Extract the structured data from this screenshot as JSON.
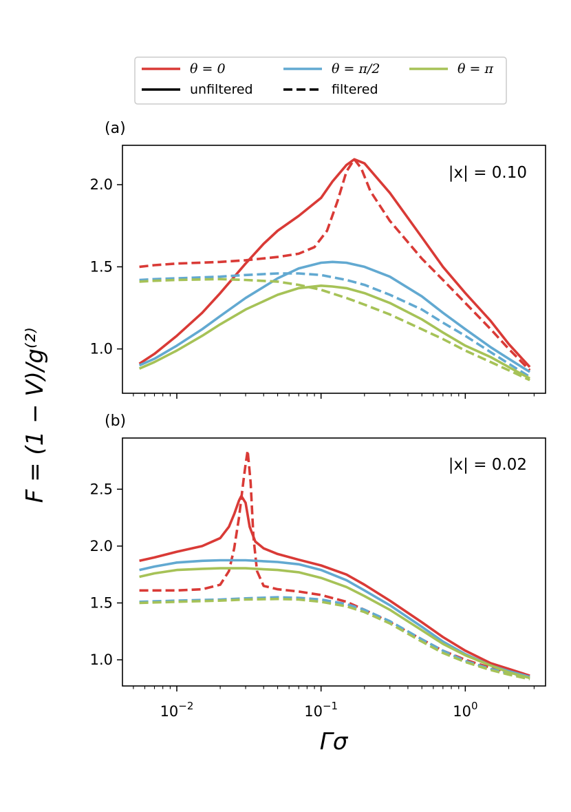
{
  "chart_data": {
    "type": "line",
    "xscale": "log",
    "xlabel": "Γσ",
    "ylabel": "F = (1 − V)/g⁽²⁾",
    "xlim": [
      0.0042,
      3.6
    ],
    "xticks": [
      {
        "value": 0.01,
        "base": "10",
        "exp": "−2"
      },
      {
        "value": 0.1,
        "base": "10",
        "exp": "−1"
      },
      {
        "value": 1,
        "base": "10",
        "exp": "0"
      }
    ],
    "legend": {
      "position": "top-center",
      "entries": [
        {
          "label": "θ = 0",
          "color": "#d93a36",
          "style": "solid"
        },
        {
          "label": "θ = π/2",
          "color": "#62a9d1",
          "style": "solid"
        },
        {
          "label": "θ = π",
          "color": "#a6c257",
          "style": "solid"
        },
        {
          "label": "unfiltered",
          "color": "#000000",
          "style": "solid"
        },
        {
          "label": "filtered",
          "color": "#000000",
          "style": "dashed"
        }
      ]
    },
    "panels": [
      {
        "label": "(a)",
        "annotation": "|x| = 0.10",
        "ylim": [
          0.73,
          2.24
        ],
        "yticks": [
          "1.0",
          "1.5",
          "2.0"
        ],
        "series": [
          {
            "name": "θ=0 unfiltered",
            "color": "#d93a36",
            "dash": false,
            "x": [
              0.0055,
              0.007,
              0.01,
              0.015,
              0.02,
              0.03,
              0.04,
              0.05,
              0.07,
              0.1,
              0.12,
              0.15,
              0.17,
              0.2,
              0.3,
              0.5,
              0.7,
              1.0,
              1.5,
              2.0,
              2.8
            ],
            "y": [
              0.91,
              0.97,
              1.08,
              1.22,
              1.34,
              1.52,
              1.64,
              1.72,
              1.81,
              1.92,
              2.02,
              2.12,
              2.155,
              2.13,
              1.95,
              1.68,
              1.5,
              1.34,
              1.17,
              1.03,
              0.89
            ]
          },
          {
            "name": "θ=0 filtered",
            "color": "#d93a36",
            "dash": true,
            "x": [
              0.0055,
              0.007,
              0.01,
              0.02,
              0.03,
              0.05,
              0.07,
              0.09,
              0.11,
              0.13,
              0.15,
              0.17,
              0.19,
              0.22,
              0.3,
              0.5,
              0.7,
              1.0,
              1.5,
              2.0,
              2.8
            ],
            "y": [
              1.5,
              1.51,
              1.52,
              1.53,
              1.54,
              1.56,
              1.58,
              1.62,
              1.72,
              1.9,
              2.08,
              2.155,
              2.1,
              1.96,
              1.78,
              1.55,
              1.42,
              1.28,
              1.12,
              1.0,
              0.87
            ]
          },
          {
            "name": "θ=π/2 unfiltered",
            "color": "#62a9d1",
            "dash": false,
            "x": [
              0.0055,
              0.007,
              0.01,
              0.015,
              0.02,
              0.03,
              0.05,
              0.07,
              0.1,
              0.12,
              0.15,
              0.2,
              0.3,
              0.5,
              0.7,
              1.0,
              1.5,
              2.0,
              2.8
            ],
            "y": [
              0.9,
              0.94,
              1.02,
              1.12,
              1.2,
              1.31,
              1.43,
              1.49,
              1.525,
              1.53,
              1.525,
              1.5,
              1.44,
              1.32,
              1.22,
              1.12,
              1.01,
              0.94,
              0.86
            ]
          },
          {
            "name": "θ=π/2 filtered",
            "color": "#62a9d1",
            "dash": true,
            "x": [
              0.0055,
              0.007,
              0.01,
              0.02,
              0.03,
              0.05,
              0.07,
              0.1,
              0.15,
              0.2,
              0.3,
              0.5,
              0.7,
              1.0,
              1.5,
              2.0,
              2.8
            ],
            "y": [
              1.42,
              1.425,
              1.43,
              1.44,
              1.45,
              1.46,
              1.46,
              1.45,
              1.42,
              1.39,
              1.33,
              1.24,
              1.16,
              1.08,
              0.98,
              0.91,
              0.83
            ]
          },
          {
            "name": "θ=π unfiltered",
            "color": "#a6c257",
            "dash": false,
            "x": [
              0.0055,
              0.007,
              0.01,
              0.015,
              0.02,
              0.03,
              0.05,
              0.07,
              0.1,
              0.12,
              0.15,
              0.2,
              0.3,
              0.5,
              0.7,
              1.0,
              1.5,
              2.0,
              2.8
            ],
            "y": [
              0.88,
              0.92,
              0.99,
              1.08,
              1.15,
              1.24,
              1.33,
              1.37,
              1.385,
              1.38,
              1.37,
              1.34,
              1.28,
              1.18,
              1.1,
              1.02,
              0.95,
              0.89,
              0.82
            ]
          },
          {
            "name": "θ=π filtered",
            "color": "#a6c257",
            "dash": true,
            "x": [
              0.0055,
              0.007,
              0.01,
              0.02,
              0.03,
              0.05,
              0.07,
              0.1,
              0.15,
              0.2,
              0.3,
              0.5,
              0.7,
              1.0,
              1.5,
              2.0,
              2.8
            ],
            "y": [
              1.41,
              1.415,
              1.42,
              1.425,
              1.42,
              1.41,
              1.39,
              1.36,
              1.31,
              1.27,
              1.21,
              1.12,
              1.06,
              0.99,
              0.92,
              0.87,
              0.81
            ]
          }
        ]
      },
      {
        "label": "(b)",
        "annotation": "|x| = 0.02",
        "ylim": [
          0.77,
          2.95
        ],
        "yticks": [
          "1.0",
          "1.5",
          "2.0",
          "2.5"
        ],
        "series": [
          {
            "name": "θ=0 unfiltered",
            "color": "#d93a36",
            "dash": false,
            "x": [
              0.0055,
              0.007,
              0.01,
              0.015,
              0.02,
              0.023,
              0.025,
              0.027,
              0.028,
              0.03,
              0.032,
              0.035,
              0.04,
              0.05,
              0.07,
              0.1,
              0.15,
              0.2,
              0.3,
              0.5,
              0.7,
              1.0,
              1.5,
              2.0,
              2.8
            ],
            "y": [
              1.87,
              1.9,
              1.95,
              2.0,
              2.07,
              2.17,
              2.28,
              2.4,
              2.44,
              2.38,
              2.17,
              2.04,
              1.98,
              1.93,
              1.88,
              1.83,
              1.75,
              1.66,
              1.52,
              1.33,
              1.2,
              1.08,
              0.97,
              0.92,
              0.86
            ]
          },
          {
            "name": "θ=0 filtered",
            "color": "#d93a36",
            "dash": true,
            "x": [
              0.0055,
              0.01,
              0.015,
              0.02,
              0.023,
              0.025,
              0.027,
              0.029,
              0.03,
              0.031,
              0.0325,
              0.034,
              0.036,
              0.04,
              0.05,
              0.07,
              0.1,
              0.15,
              0.2,
              0.3,
              0.5,
              0.7,
              1.0,
              1.5,
              2.0,
              2.8
            ],
            "y": [
              1.61,
              1.61,
              1.62,
              1.66,
              1.78,
              1.98,
              2.25,
              2.58,
              2.72,
              2.84,
              2.56,
              2.08,
              1.78,
              1.65,
              1.62,
              1.6,
              1.57,
              1.51,
              1.44,
              1.33,
              1.18,
              1.08,
              1.0,
              0.93,
              0.89,
              0.85
            ]
          },
          {
            "name": "θ=π/2 unfiltered",
            "color": "#62a9d1",
            "dash": false,
            "x": [
              0.0055,
              0.007,
              0.01,
              0.015,
              0.02,
              0.03,
              0.05,
              0.07,
              0.1,
              0.15,
              0.2,
              0.3,
              0.5,
              0.7,
              1.0,
              1.5,
              2.0,
              2.8
            ],
            "y": [
              1.79,
              1.82,
              1.855,
              1.87,
              1.875,
              1.875,
              1.86,
              1.84,
              1.79,
              1.7,
              1.61,
              1.48,
              1.29,
              1.16,
              1.05,
              0.95,
              0.9,
              0.85
            ]
          },
          {
            "name": "θ=π/2 filtered",
            "color": "#62a9d1",
            "dash": true,
            "x": [
              0.0055,
              0.01,
              0.02,
              0.03,
              0.05,
              0.07,
              0.1,
              0.15,
              0.2,
              0.3,
              0.5,
              0.7,
              1.0,
              1.5,
              2.0,
              2.8
            ],
            "y": [
              1.51,
              1.52,
              1.53,
              1.54,
              1.55,
              1.545,
              1.53,
              1.49,
              1.44,
              1.34,
              1.18,
              1.08,
              0.99,
              0.92,
              0.88,
              0.84
            ]
          },
          {
            "name": "θ=π unfiltered",
            "color": "#a6c257",
            "dash": false,
            "x": [
              0.0055,
              0.007,
              0.01,
              0.015,
              0.02,
              0.03,
              0.05,
              0.07,
              0.1,
              0.15,
              0.2,
              0.3,
              0.5,
              0.7,
              1.0,
              1.5,
              2.0,
              2.8
            ],
            "y": [
              1.73,
              1.76,
              1.79,
              1.8,
              1.805,
              1.805,
              1.79,
              1.77,
              1.72,
              1.64,
              1.56,
              1.44,
              1.26,
              1.14,
              1.04,
              0.95,
              0.89,
              0.84
            ]
          },
          {
            "name": "θ=π filtered",
            "color": "#a6c257",
            "dash": true,
            "x": [
              0.0055,
              0.01,
              0.02,
              0.03,
              0.05,
              0.07,
              0.1,
              0.15,
              0.2,
              0.3,
              0.5,
              0.7,
              1.0,
              1.5,
              2.0,
              2.8
            ],
            "y": [
              1.5,
              1.51,
              1.52,
              1.53,
              1.535,
              1.53,
              1.51,
              1.47,
              1.42,
              1.32,
              1.16,
              1.06,
              0.98,
              0.91,
              0.87,
              0.83
            ]
          }
        ]
      }
    ]
  }
}
